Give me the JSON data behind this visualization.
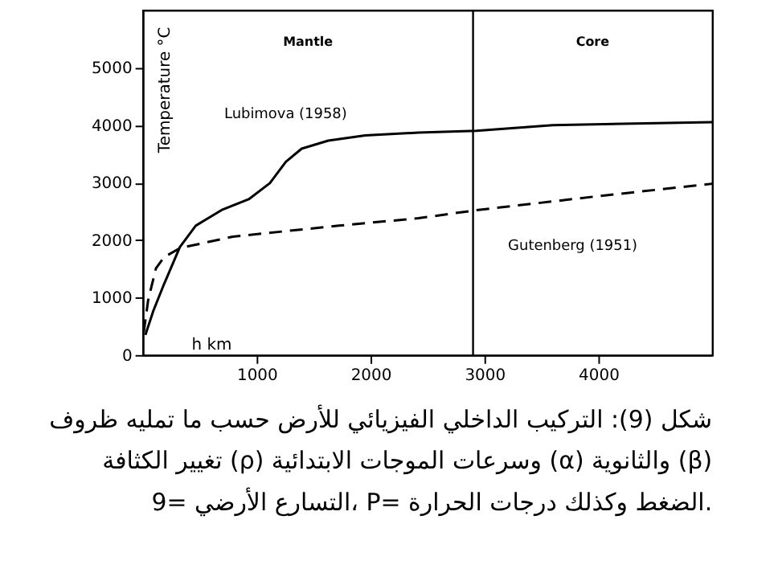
{
  "chart_data": {
    "type": "line",
    "title": "شكل (9): التركيب الداخلي الفيزيائي للأرض حسب ما تمليه ظروف\nتغيير الكثافة (ρ) وسرعات الموجات الابتدائية (α) والثانوية (β)\n9= التسارع الأرضي، P= الضغط وكذلك درجات الحرارة.",
    "xlabel": "h km",
    "ylabel": "Temperature °C",
    "xlim": [
      0,
      5000
    ],
    "ylim": [
      0,
      6000
    ],
    "xticks": [
      1000,
      2000,
      3000,
      4000
    ],
    "yticks": [
      0,
      1000,
      2000,
      3000,
      4000,
      5000
    ],
    "grid": false,
    "marker": "none",
    "series": [
      {
        "name": "Lubimova (1958)",
        "color": "#000000",
        "line_style": "solid",
        "x": [
          23,
          93,
          186,
          326,
          465,
          700,
          930,
          1116,
          1256,
          1395,
          1628,
          1953,
          2420,
          2930,
          3600,
          5000
        ],
        "values": [
          350,
          770,
          1230,
          1880,
          2250,
          2530,
          2710,
          2990,
          3360,
          3590,
          3730,
          3820,
          3870,
          3900,
          4000,
          4050
        ]
      },
      {
        "name": "Gutenberg (1951)",
        "color": "#000000",
        "line_style": "dashed",
        "x": [
          9,
          47,
          116,
          186,
          326,
          791,
          1721,
          2420,
          2930,
          4070,
          5000
        ],
        "values": [
          400,
          950,
          1510,
          1700,
          1860,
          2060,
          2250,
          2380,
          2520,
          2780,
          2980
        ]
      }
    ],
    "ref_lines": [
      {
        "axis": "x",
        "value": 2900,
        "label": null,
        "color": "#000000",
        "line_style": "solid"
      }
    ],
    "annotations": [
      "Mantle",
      "Core"
    ]
  }
}
